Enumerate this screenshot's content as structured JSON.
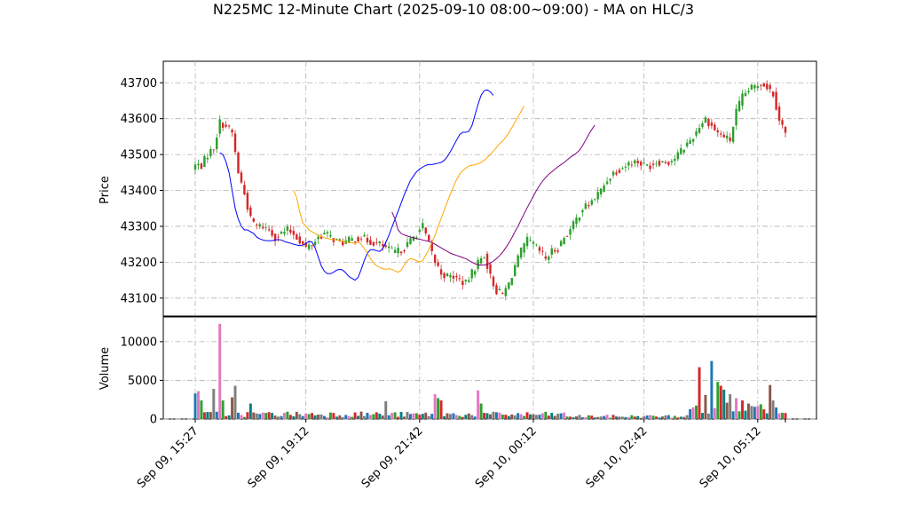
{
  "title": "N225MC 12-Minute Chart (2025-09-10 08:00~09:00) - MA on HLC/3",
  "chart_data": [
    {
      "type": "candlestick",
      "panel": "price",
      "ylabel": "Price",
      "ylim": [
        43050,
        43760
      ],
      "yticks": [
        43100,
        43200,
        43300,
        43400,
        43500,
        43600,
        43700
      ],
      "grid": true,
      "colors": {
        "up": "#2ca02c",
        "down": "#d62728",
        "ma_short": "#0000ff",
        "ma_mid": "#ffa500",
        "ma_long": "#800080"
      },
      "note": "approximate HLC/3 path used for candles and moving averages",
      "path": [
        [
          0,
          43470
        ],
        [
          2,
          43470
        ],
        [
          4,
          43500
        ],
        [
          6,
          43520
        ],
        [
          8,
          43590
        ],
        [
          10,
          43580
        ],
        [
          12,
          43560
        ],
        [
          14,
          43450
        ],
        [
          16,
          43390
        ],
        [
          18,
          43320
        ],
        [
          20,
          43300
        ],
        [
          22,
          43300
        ],
        [
          24,
          43290
        ],
        [
          26,
          43270
        ],
        [
          28,
          43280
        ],
        [
          30,
          43290
        ],
        [
          32,
          43280
        ],
        [
          34,
          43260
        ],
        [
          36,
          43240
        ],
        [
          38,
          43250
        ],
        [
          40,
          43270
        ],
        [
          42,
          43280
        ],
        [
          44,
          43270
        ],
        [
          46,
          43260
        ],
        [
          48,
          43255
        ],
        [
          50,
          43260
        ],
        [
          52,
          43265
        ],
        [
          54,
          43270
        ],
        [
          56,
          43260
        ],
        [
          58,
          43255
        ],
        [
          60,
          43250
        ],
        [
          62,
          43240
        ],
        [
          64,
          43230
        ],
        [
          66,
          43230
        ],
        [
          68,
          43240
        ],
        [
          70,
          43260
        ],
        [
          72,
          43280
        ],
        [
          74,
          43300
        ],
        [
          76,
          43250
        ],
        [
          78,
          43200
        ],
        [
          80,
          43170
        ],
        [
          82,
          43160
        ],
        [
          84,
          43160
        ],
        [
          86,
          43150
        ],
        [
          88,
          43140
        ],
        [
          90,
          43170
        ],
        [
          92,
          43200
        ],
        [
          94,
          43220
        ],
        [
          96,
          43160
        ],
        [
          98,
          43120
        ],
        [
          100,
          43110
        ],
        [
          102,
          43140
        ],
        [
          104,
          43190
        ],
        [
          106,
          43230
        ],
        [
          108,
          43260
        ],
        [
          110,
          43250
        ],
        [
          112,
          43230
        ],
        [
          114,
          43210
        ],
        [
          116,
          43230
        ],
        [
          118,
          43240
        ],
        [
          120,
          43270
        ],
        [
          122,
          43290
        ],
        [
          124,
          43320
        ],
        [
          126,
          43350
        ],
        [
          128,
          43360
        ],
        [
          130,
          43380
        ],
        [
          132,
          43400
        ],
        [
          134,
          43430
        ],
        [
          136,
          43450
        ],
        [
          138,
          43460
        ],
        [
          140,
          43470
        ],
        [
          142,
          43480
        ],
        [
          144,
          43480
        ],
        [
          146,
          43470
        ],
        [
          148,
          43470
        ],
        [
          150,
          43480
        ],
        [
          152,
          43480
        ],
        [
          154,
          43480
        ],
        [
          156,
          43490
        ],
        [
          158,
          43510
        ],
        [
          160,
          43530
        ],
        [
          162,
          43550
        ],
        [
          164,
          43580
        ],
        [
          166,
          43600
        ],
        [
          168,
          43580
        ],
        [
          170,
          43560
        ],
        [
          172,
          43550
        ],
        [
          174,
          43540
        ],
        [
          176,
          43620
        ],
        [
          178,
          43660
        ],
        [
          180,
          43680
        ],
        [
          182,
          43690
        ],
        [
          184,
          43700
        ],
        [
          186,
          43690
        ],
        [
          188,
          43670
        ],
        [
          190,
          43600
        ],
        [
          192,
          43560
        ]
      ],
      "ma_short": {
        "start": 8,
        "values": [
          43505,
          43500,
          43480,
          43450,
          43400,
          43350,
          43320,
          43300,
          43290,
          43290,
          43285,
          43280,
          43270,
          43265,
          43262,
          43260,
          43260,
          43260,
          43262,
          43263,
          43262,
          43258,
          43255,
          43253,
          43250,
          43248,
          43246,
          43248,
          43252,
          43258,
          43256,
          43240,
          43215,
          43190,
          43175,
          43168,
          43168,
          43172,
          43178,
          43180,
          43178,
          43170,
          43160,
          43155,
          43150,
          43158,
          43180,
          43205,
          43225,
          43235,
          43235,
          43232,
          43230,
          43238,
          43255,
          43275,
          43298,
          43320,
          43342,
          43365,
          43388,
          43408,
          43428,
          43440,
          43452,
          43460,
          43465,
          43470,
          43472,
          43472,
          43474,
          43476,
          43478,
          43484,
          43494,
          43508,
          43524,
          43540,
          43555,
          43562,
          43562,
          43565,
          43580,
          43610,
          43640,
          43665,
          43678,
          43680,
          43675,
          43665
        ]
      },
      "ma_mid": {
        "start": 32,
        "values": [
          43400,
          43380,
          43340,
          43310,
          43300,
          43290,
          43285,
          43280,
          43275,
          43272,
          43268,
          43266,
          43264,
          43263,
          43262,
          43260,
          43258,
          43256,
          43255,
          43254,
          43253,
          43256,
          43250,
          43238,
          43225,
          43210,
          43198,
          43190,
          43186,
          43182,
          43180,
          43182,
          43180,
          43176,
          43172,
          43178,
          43192,
          43205,
          43210,
          43208,
          43204,
          43200,
          43204,
          43220,
          43235,
          43255,
          43275,
          43300,
          43322,
          43345,
          43368,
          43390,
          43410,
          43430,
          43445,
          43455,
          43462,
          43468,
          43470,
          43472,
          43474,
          43478,
          43484,
          43492,
          43500,
          43510,
          43520,
          43530,
          43538,
          43548,
          43560,
          43575,
          43590,
          43605,
          43620,
          43635
        ]
      },
      "ma_long": {
        "start": 64,
        "values": [
          43340,
          43320,
          43290,
          43280,
          43276,
          43273,
          43270,
          43268,
          43266,
          43264,
          43262,
          43260,
          43258,
          43255,
          43250,
          43245,
          43240,
          43235,
          43230,
          43225,
          43222,
          43219,
          43216,
          43213,
          43210,
          43205,
          43200,
          43196,
          43193,
          43192,
          43192,
          43194,
          43198,
          43203,
          43210,
          43218,
          43228,
          43240,
          43253,
          43268,
          43285,
          43300,
          43318,
          43335,
          43352,
          43368,
          43384,
          43400,
          43414,
          43426,
          43436,
          43445,
          43452,
          43459,
          43466,
          43472,
          43478,
          43485,
          43492,
          43498,
          43504,
          43512,
          43525,
          43540,
          43556,
          43570,
          43582
        ]
      }
    },
    {
      "type": "bar",
      "panel": "volume",
      "ylabel": "Volume",
      "ylim": [
        0,
        13200
      ],
      "yticks": [
        0,
        5000,
        10000
      ],
      "grid": true,
      "x_ticks": [
        "Sep 09, 15:27",
        "Sep 09, 19:12",
        "Sep 09, 21:42",
        "Sep 10, 00:12",
        "Sep 10, 02:42",
        "Sep 10, 05:12"
      ],
      "x_tick_index": [
        0,
        36,
        73,
        110,
        146,
        183
      ],
      "spikes": {
        "0": 3300,
        "1": 3600,
        "2": 2400,
        "6": 3900,
        "8": 12300,
        "9": 2400,
        "12": 2800,
        "13": 4300,
        "18": 2000,
        "62": 2300,
        "78": 3200,
        "79": 2700,
        "80": 2400,
        "92": 3700,
        "93": 2000,
        "164": 6700,
        "166": 3100,
        "168": 7500,
        "170": 4800,
        "171": 4300,
        "172": 3800,
        "174": 3200,
        "176": 2700,
        "178": 2400,
        "180": 2000,
        "184": 1900,
        "187": 4400,
        "188": 2400,
        "189": 1500
      },
      "colors": [
        "#1f77b4",
        "#e377c2",
        "#2ca02c",
        "#d62728",
        "#008080",
        "#8c564b",
        "#7f7f7f"
      ]
    }
  ]
}
